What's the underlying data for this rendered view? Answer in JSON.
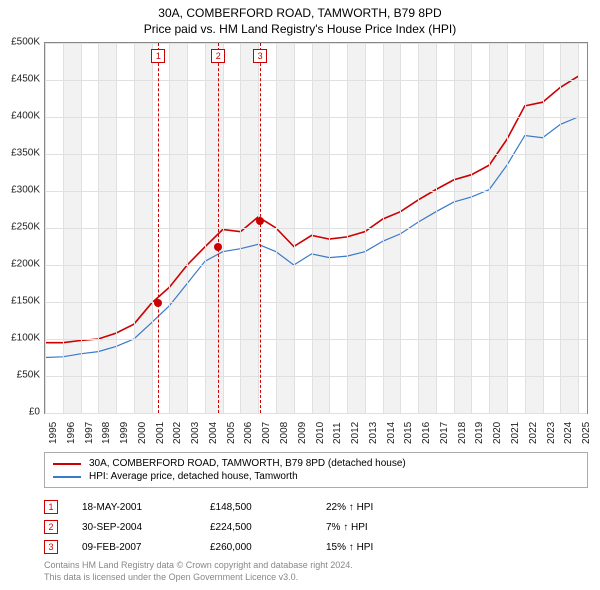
{
  "title_line1": "30A, COMBERFORD ROAD, TAMWORTH, B79 8PD",
  "title_line2": "Price paid vs. HM Land Registry's House Price Index (HPI)",
  "chart": {
    "type": "line",
    "x_years": [
      1995,
      1996,
      1997,
      1998,
      1999,
      2000,
      2001,
      2002,
      2003,
      2004,
      2005,
      2006,
      2007,
      2008,
      2009,
      2010,
      2011,
      2012,
      2013,
      2014,
      2015,
      2016,
      2017,
      2018,
      2019,
      2020,
      2021,
      2022,
      2023,
      2024,
      2025
    ],
    "xlim": [
      1995,
      2025.5
    ],
    "ylim": [
      0,
      500000
    ],
    "ytick_step": 50000,
    "ytick_labels": [
      "£0",
      "£50K",
      "£100K",
      "£150K",
      "£200K",
      "£250K",
      "£300K",
      "£350K",
      "£400K",
      "£450K",
      "£500K"
    ],
    "grid_color": "#e0e0e0",
    "band_color": "#f2f2f2",
    "background_color": "#ffffff",
    "series": [
      {
        "key": "red",
        "label": "30A, COMBERFORD ROAD, TAMWORTH, B79 8PD (detached house)",
        "color": "#cc0000",
        "width": 1.6,
        "points": [
          [
            1995,
            95000
          ],
          [
            1996,
            95000
          ],
          [
            1997,
            98000
          ],
          [
            1998,
            100000
          ],
          [
            1999,
            108000
          ],
          [
            2000,
            120000
          ],
          [
            2001,
            148500
          ],
          [
            2002,
            170000
          ],
          [
            2003,
            200000
          ],
          [
            2004,
            224500
          ],
          [
            2005,
            248000
          ],
          [
            2006,
            245000
          ],
          [
            2007,
            265000
          ],
          [
            2008,
            250000
          ],
          [
            2009,
            225000
          ],
          [
            2010,
            240000
          ],
          [
            2011,
            235000
          ],
          [
            2012,
            238000
          ],
          [
            2013,
            245000
          ],
          [
            2014,
            262000
          ],
          [
            2015,
            272000
          ],
          [
            2016,
            288000
          ],
          [
            2017,
            302000
          ],
          [
            2018,
            315000
          ],
          [
            2019,
            322000
          ],
          [
            2020,
            335000
          ],
          [
            2021,
            370000
          ],
          [
            2022,
            415000
          ],
          [
            2023,
            420000
          ],
          [
            2024,
            440000
          ],
          [
            2025,
            455000
          ]
        ]
      },
      {
        "key": "blue",
        "label": "HPI: Average price, detached house, Tamworth",
        "color": "#3a7acb",
        "width": 1.2,
        "points": [
          [
            1995,
            75000
          ],
          [
            1996,
            76000
          ],
          [
            1997,
            80000
          ],
          [
            1998,
            83000
          ],
          [
            1999,
            90000
          ],
          [
            2000,
            100000
          ],
          [
            2001,
            122000
          ],
          [
            2002,
            145000
          ],
          [
            2003,
            175000
          ],
          [
            2004,
            205000
          ],
          [
            2005,
            218000
          ],
          [
            2006,
            222000
          ],
          [
            2007,
            228000
          ],
          [
            2008,
            218000
          ],
          [
            2009,
            200000
          ],
          [
            2010,
            215000
          ],
          [
            2011,
            210000
          ],
          [
            2012,
            212000
          ],
          [
            2013,
            218000
          ],
          [
            2014,
            232000
          ],
          [
            2015,
            242000
          ],
          [
            2016,
            258000
          ],
          [
            2017,
            272000
          ],
          [
            2018,
            285000
          ],
          [
            2019,
            292000
          ],
          [
            2020,
            302000
          ],
          [
            2021,
            335000
          ],
          [
            2022,
            375000
          ],
          [
            2023,
            372000
          ],
          [
            2024,
            390000
          ],
          [
            2025,
            400000
          ]
        ]
      }
    ],
    "markers": [
      {
        "n": "1",
        "date": "18-MAY-2001",
        "x": 2001.38,
        "price": "£148,500",
        "pct": "22% ↑ HPI",
        "y": 148500
      },
      {
        "n": "2",
        "date": "30-SEP-2004",
        "x": 2004.75,
        "price": "£224,500",
        "pct": "7% ↑ HPI",
        "y": 224500
      },
      {
        "n": "3",
        "date": "09-FEB-2007",
        "x": 2007.11,
        "price": "£260,000",
        "pct": "15% ↑ HPI",
        "y": 260000
      }
    ]
  },
  "footer_line1": "Contains HM Land Registry data © Crown copyright and database right 2024.",
  "footer_line2": "This data is licensed under the Open Government Licence v3.0."
}
